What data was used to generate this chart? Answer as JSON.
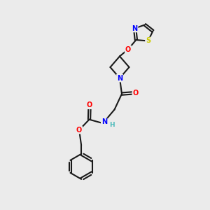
{
  "background_color": "#EBEBEB",
  "bond_color": "#1a1a1a",
  "atom_colors": {
    "N": "#0000FF",
    "O": "#FF0000",
    "S": "#CCCC00",
    "H": "#4DBBBB",
    "C": "#1a1a1a"
  },
  "bond_width": 1.5,
  "figsize": [
    3.0,
    3.0
  ],
  "dpi": 100,
  "xlim": [
    0,
    10
  ],
  "ylim": [
    0,
    10
  ]
}
